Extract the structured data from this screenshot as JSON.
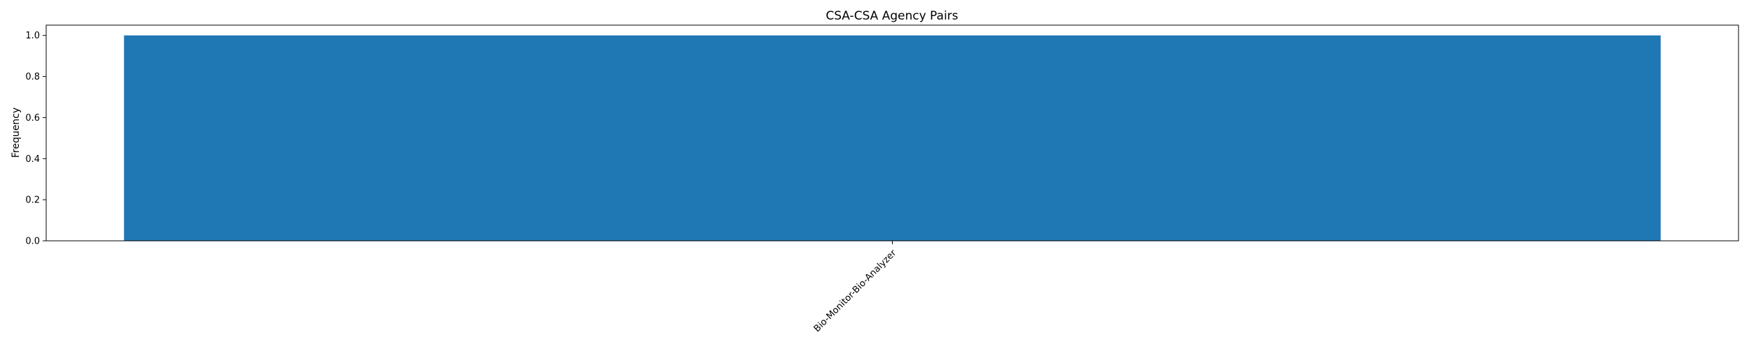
{
  "chart_data": {
    "type": "bar",
    "title": "CSA-CSA Agency Pairs",
    "xlabel": "",
    "ylabel": "Frequency",
    "categories": [
      "Bio-Monitor-Bio-Analyzer"
    ],
    "values": [
      1
    ],
    "ylim": [
      0,
      1.05
    ],
    "yticks": [
      0.0,
      0.2,
      0.4,
      0.6,
      0.8,
      1.0
    ],
    "ytick_labels": [
      "0.0",
      "0.2",
      "0.4",
      "0.6",
      "0.8",
      "1.0"
    ],
    "grid": false,
    "legend": "none",
    "bar_color": "#1f77b4"
  }
}
